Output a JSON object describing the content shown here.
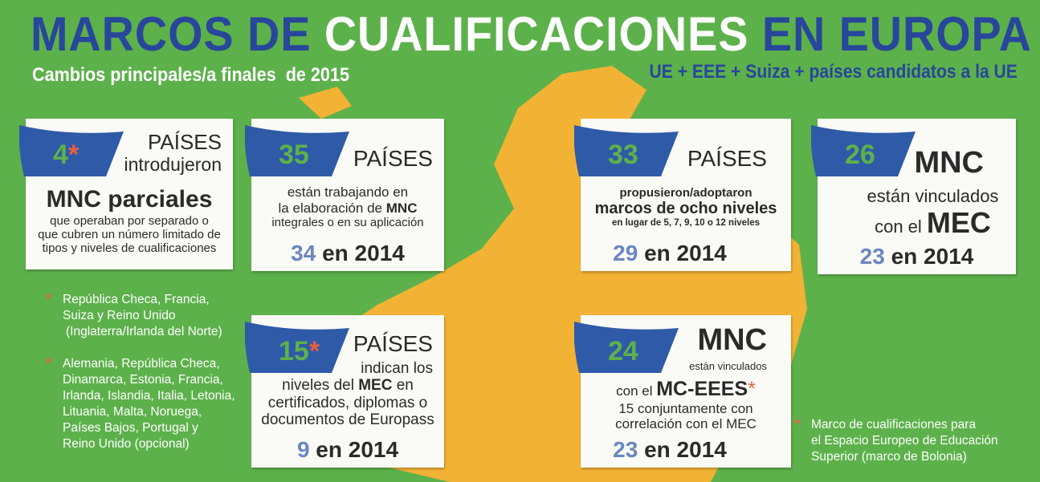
{
  "title": {
    "part1": "MARCOS DE",
    "part2": "CUALIFICACIONES",
    "part3": "EN EUROPA"
  },
  "subtitle": "Cambios principales/a finales  de 2015",
  "scope": "UE + EEE + Suiza + países candidatos a la UE",
  "cards": [
    {
      "number": 4,
      "asterisk": "*",
      "heading": "PAÍSES",
      "text": [
        "introdujeron",
        "MNC parciales",
        "que operaban por separado o",
        "que cubren un número limitado de",
        "tipos y niveles de cualificaciones"
      ]
    },
    {
      "number": 35,
      "heading": "PAÍSES",
      "text": [
        "están trabajando en",
        "la elaboración de",
        "MNC",
        "integrales o en su aplicación"
      ],
      "previous": {
        "number": 34,
        "label": "en 2014"
      }
    },
    {
      "number": 33,
      "heading": "PAÍSES",
      "text": [
        "propusieron/adoptaron",
        "marcos de ocho niveles",
        "en lugar de 5, 7, 9, 10 o 12 niveles"
      ],
      "previous": {
        "number": 29,
        "label": "en 2014"
      }
    },
    {
      "number": 26,
      "heading": "MNC",
      "text": [
        "están vinculados",
        "con el",
        "MEC"
      ],
      "previous": {
        "number": 23,
        "label": "en 2014"
      }
    },
    {
      "number": 15,
      "asterisk": "*",
      "heading": "PAÍSES",
      "text": [
        "indican los",
        "niveles del",
        "MEC",
        "en",
        "certificados, diplomas o",
        "documentos de Europass"
      ],
      "previous": {
        "number": 9,
        "label": "en 2014"
      }
    },
    {
      "number": 24,
      "heading": "MNC",
      "text": [
        "están vinculados",
        "con el",
        "MC-EEES",
        "*",
        "15 conjuntamente con",
        "correlación con el MEC"
      ],
      "previous": {
        "number": 23,
        "label": "en 2014"
      }
    }
  ],
  "notes": [
    {
      "asterisk": "*",
      "lines": [
        "República Checa, Francia,",
        "Suiza y Reino Unido",
        "(Inglaterra/Irlanda del Norte)"
      ]
    },
    {
      "asterisk": "*",
      "lines": [
        "Alemania, República Checa,",
        "Dinamarca, Estonia, Francia,",
        "Irlanda, Islandia, Italia, Letonia,",
        "Lituania, Malta, Noruega,",
        "Países Bajos, Portugal y",
        "Reino Unido (opcional)"
      ]
    },
    {
      "asterisk": "*",
      "lines": [
        "Marco de cualificaciones para",
        "el Espacio Europeo de Educación",
        "Superior (marco de Bolonia)"
      ]
    }
  ]
}
